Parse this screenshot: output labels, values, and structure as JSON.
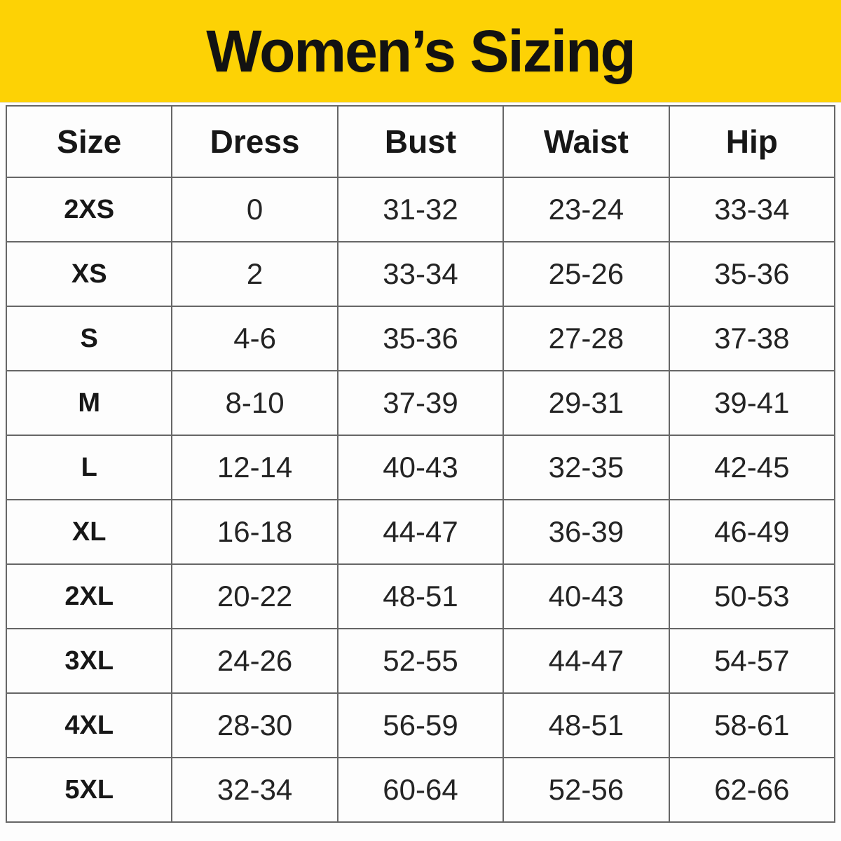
{
  "chart_data": {
    "type": "table",
    "title": "Women’s Sizing",
    "columns": [
      "Size",
      "Dress",
      "Bust",
      "Waist",
      "Hip"
    ],
    "rows": [
      [
        "2XS",
        "0",
        "31-32",
        "23-24",
        "33-34"
      ],
      [
        "XS",
        "2",
        "33-34",
        "25-26",
        "35-36"
      ],
      [
        "S",
        "4-6",
        "35-36",
        "27-28",
        "37-38"
      ],
      [
        "M",
        "8-10",
        "37-39",
        "29-31",
        "39-41"
      ],
      [
        "L",
        "12-14",
        "40-43",
        "32-35",
        "42-45"
      ],
      [
        "XL",
        "16-18",
        "44-47",
        "36-39",
        "46-49"
      ],
      [
        "2XL",
        "20-22",
        "48-51",
        "40-43",
        "50-53"
      ],
      [
        "3XL",
        "24-26",
        "52-55",
        "44-47",
        "54-57"
      ],
      [
        "4XL",
        "28-30",
        "56-59",
        "48-51",
        "58-61"
      ],
      [
        "5XL",
        "32-34",
        "60-64",
        "52-56",
        "62-66"
      ]
    ],
    "layout": {
      "legend": "none",
      "grid": "on",
      "header_position": "top"
    }
  },
  "colors": {
    "banner_yellow": "#FDD205",
    "grid_gray": "#666666",
    "text_black": "#1E1E1E",
    "cell_background": "#FDFDFD"
  }
}
